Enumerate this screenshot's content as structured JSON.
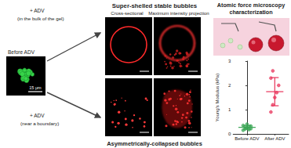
{
  "figure": {
    "left": {
      "top_arrow_label": [
        "+ ADV",
        "(in the bulk of the gel)"
      ],
      "bottom_arrow_label": [
        "+ ADV",
        "(near a boundary)"
      ],
      "image_label": "Before ADV",
      "scale_label": "15 μm"
    },
    "middle": {
      "title_top": "Super-shelled stable bubbles",
      "columns": [
        "Cross-sectional",
        "Maximum intensity projection"
      ],
      "title_bottom": "Asymmetrically-collapsed bubbles"
    },
    "right": {
      "title": [
        "Atomic force microscopy",
        "characterization"
      ]
    }
  },
  "chart_data": {
    "type": "scatter",
    "categories": [
      "Before ADV",
      "After ADV"
    ],
    "values": [
      [
        0.15,
        0.2,
        0.25,
        0.3,
        0.22,
        0.35,
        0.28,
        0.4,
        0.18,
        0.32
      ],
      [
        0.9,
        1.2,
        1.5,
        1.7,
        2.0,
        2.3,
        2.6
      ]
    ],
    "mean": [
      0.27,
      1.74
    ],
    "error": [
      0.08,
      0.58
    ],
    "colors": [
      "#3aa655",
      "#e8335a"
    ],
    "y_label": "Young's Modulus (kPa)",
    "ylim": [
      0,
      3
    ],
    "yticks": [
      0,
      1,
      2,
      3
    ],
    "grid": false
  }
}
